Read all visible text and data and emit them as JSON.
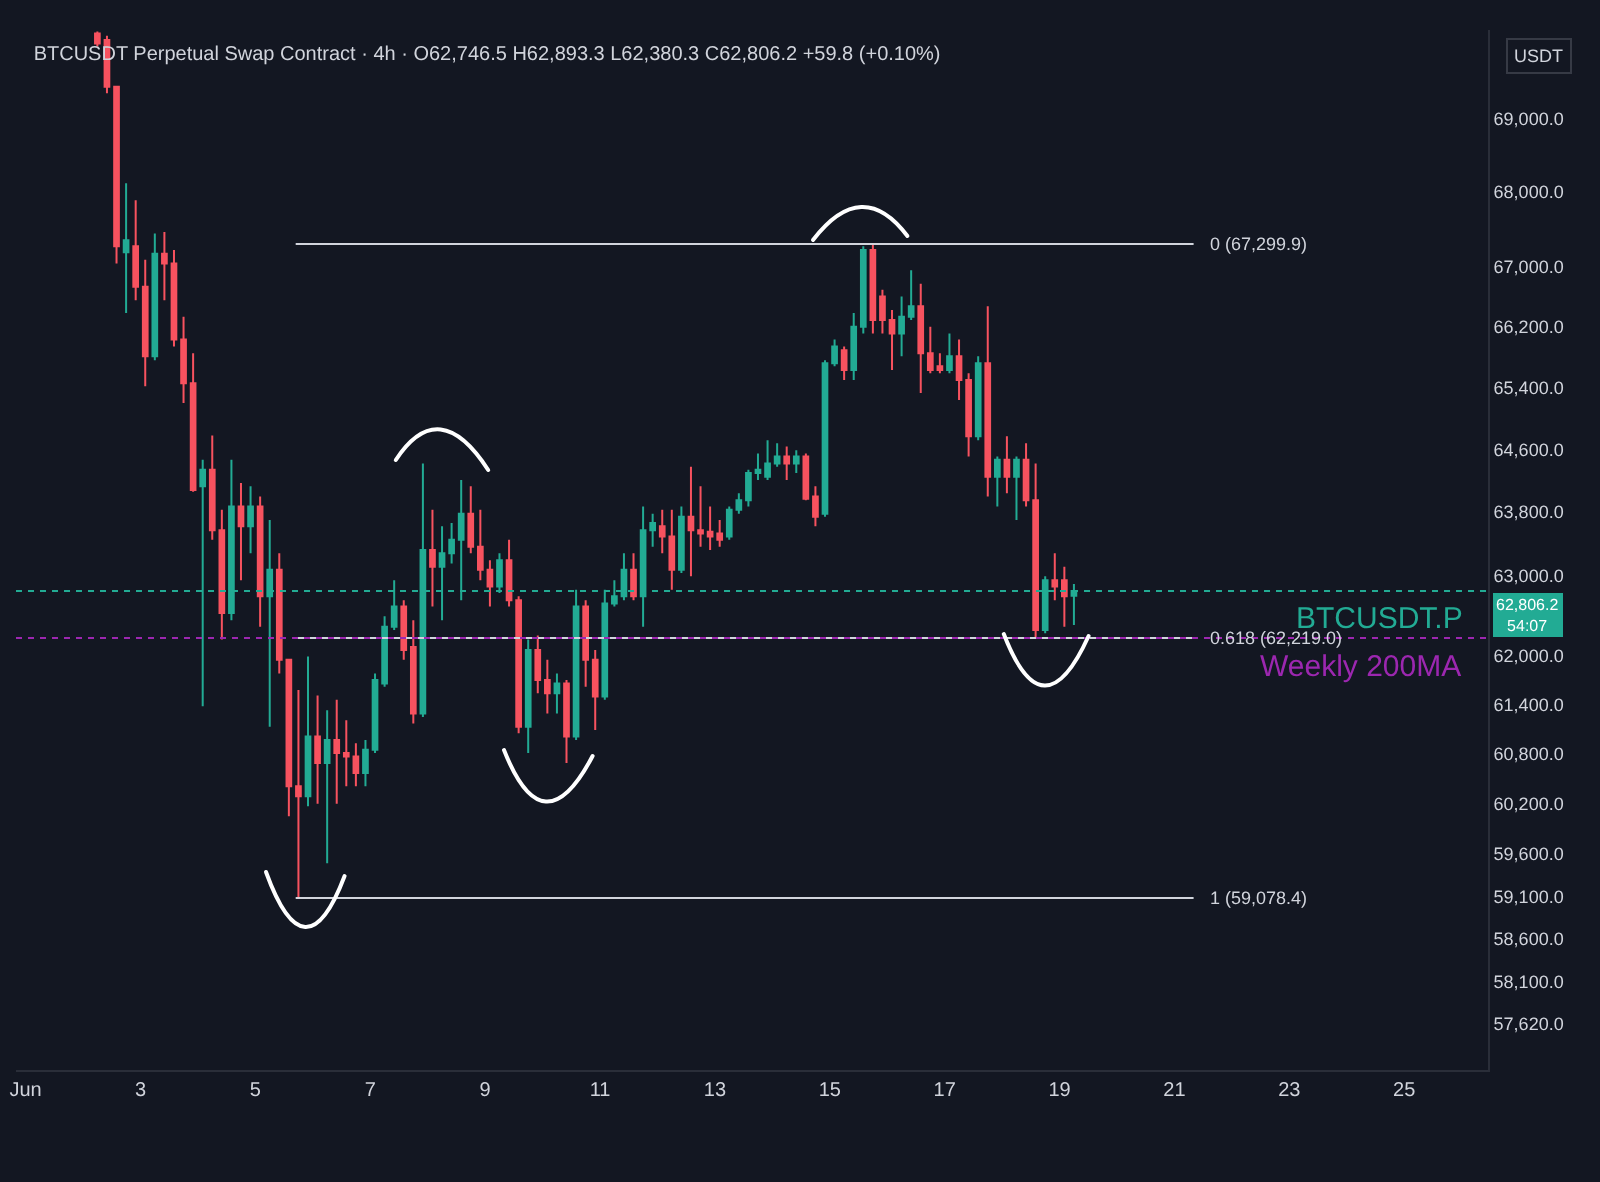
{
  "chart_data": {
    "type": "candlestick",
    "title": "BTCUSDT Perpetual Swap Contract · 4h · O62,746.5 H62,893.3 L62,380.3 C62,806.2 +59.8 (+0.10%)",
    "ylabel": "USDT",
    "log": true,
    "x": [
      "--06-02T06:00",
      "--06-02T10:00",
      "--06-02T14:00",
      "--06-02T18:00",
      "--06-02T22:00",
      "--06-03T02:00",
      "--06-03T06:00",
      "--06-03T10:00",
      "--06-03T14:00",
      "--06-03T18:00",
      "--06-03T22:00",
      "--06-04T02:00",
      "--06-04T06:00",
      "--06-04T10:00",
      "--06-04T14:00",
      "--06-04T18:00",
      "--06-04T22:00",
      "--06-05T02:00",
      "--06-05T06:00",
      "--06-05T10:00",
      "--06-05T14:00",
      "--06-05T18:00",
      "--06-05T22:00",
      "--06-06T02:00",
      "--06-06T06:00",
      "--06-06T10:00",
      "--06-06T14:00",
      "--06-06T18:00",
      "--06-06T22:00",
      "--06-07T02:00",
      "--06-07T06:00",
      "--06-07T10:00",
      "--06-07T14:00",
      "--06-07T18:00",
      "--06-07T22:00",
      "--06-08T02:00",
      "--06-08T06:00",
      "--06-08T10:00",
      "--06-08T14:00",
      "--06-08T18:00",
      "--06-08T22:00",
      "--06-09T02:00",
      "--06-09T06:00",
      "--06-09T10:00",
      "--06-09T14:00",
      "--06-09T18:00",
      "--06-09T22:00",
      "--06-10T02:00",
      "--06-10T06:00",
      "--06-10T10:00",
      "--06-10T14:00",
      "--06-10T18:00",
      "--06-10T22:00",
      "--06-11T02:00",
      "--06-11T06:00",
      "--06-11T10:00",
      "--06-11T14:00",
      "--06-11T18:00",
      "--06-11T22:00",
      "--06-12T02:00",
      "--06-12T06:00",
      "--06-12T10:00",
      "--06-12T14:00",
      "--06-12T18:00",
      "--06-12T22:00",
      "--06-13T02:00",
      "--06-13T06:00",
      "--06-13T10:00",
      "--06-13T14:00",
      "--06-13T18:00",
      "--06-13T22:00",
      "--06-14T02:00",
      "--06-14T06:00",
      "--06-14T10:00",
      "--06-14T14:00",
      "--06-14T18:00",
      "--06-14T22:00",
      "--06-15T02:00",
      "--06-15T06:00",
      "--06-15T10:00",
      "--06-15T14:00",
      "--06-15T18:00",
      "--06-15T22:00",
      "--06-16T02:00",
      "--06-16T06:00",
      "--06-16T10:00",
      "--06-16T14:00",
      "--06-16T18:00",
      "--06-16T22:00",
      "--06-17T02:00",
      "--06-17T06:00",
      "--06-17T10:00",
      "--06-17T14:00",
      "--06-17T18:00",
      "--06-17T22:00",
      "--06-18T02:00",
      "--06-18T06:00",
      "--06-18T10:00",
      "--06-18T14:00",
      "--06-18T18:00",
      "--06-18T22:00",
      "--06-19T02:00",
      "--06-19T06:00"
    ],
    "ohlc": [
      [
        70180,
        70210,
        70000,
        70040
      ],
      [
        70090,
        70150,
        69350,
        69440
      ],
      [
        69440,
        69450,
        67040,
        67270
      ],
      [
        67190,
        68120,
        66380,
        67350
      ],
      [
        67270,
        67890,
        66550,
        66730
      ],
      [
        66730,
        67090,
        65420,
        65810
      ],
      [
        65810,
        67440,
        65760,
        67170
      ],
      [
        67170,
        67460,
        66550,
        67040
      ],
      [
        67040,
        67220,
        65940,
        66030
      ],
      [
        66030,
        66330,
        65200,
        65460
      ],
      [
        65460,
        65850,
        64060,
        64080
      ],
      [
        64130,
        64470,
        61380,
        64340
      ],
      [
        64340,
        64780,
        63450,
        63570
      ],
      [
        63570,
        63830,
        62200,
        62530
      ],
      [
        62530,
        64470,
        62440,
        63870
      ],
      [
        63870,
        64170,
        62940,
        63620
      ],
      [
        63620,
        64130,
        63280,
        63870
      ],
      [
        63870,
        64000,
        62360,
        62740
      ],
      [
        62740,
        63700,
        61130,
        63070
      ],
      [
        63070,
        63280,
        61780,
        61950
      ],
      [
        61950,
        61950,
        60050,
        60410
      ],
      [
        60410,
        61580,
        59080,
        60290
      ],
      [
        60290,
        61990,
        60170,
        61010
      ],
      [
        61010,
        61510,
        60200,
        60690
      ],
      [
        60690,
        61330,
        59490,
        60970
      ],
      [
        60970,
        61460,
        60200,
        60810
      ],
      [
        60810,
        61210,
        60410,
        60770
      ],
      [
        60770,
        60930,
        60410,
        60570
      ],
      [
        60570,
        60970,
        60410,
        60850
      ],
      [
        60850,
        61780,
        60810,
        61700
      ],
      [
        61660,
        62490,
        61620,
        62360
      ],
      [
        62360,
        62940,
        62320,
        62610
      ],
      [
        62610,
        62690,
        61950,
        62070
      ],
      [
        62110,
        62440,
        61170,
        61290
      ],
      [
        61290,
        64420,
        61250,
        63320
      ],
      [
        63320,
        63830,
        62610,
        63110
      ],
      [
        63110,
        63620,
        62440,
        63280
      ],
      [
        63280,
        63660,
        63150,
        63450
      ],
      [
        63450,
        64210,
        62690,
        63780
      ],
      [
        63780,
        64130,
        63280,
        63360
      ],
      [
        63360,
        63830,
        62940,
        63070
      ],
      [
        63070,
        63190,
        62610,
        62860
      ],
      [
        62860,
        63280,
        62780,
        63190
      ],
      [
        63190,
        63450,
        62610,
        62690
      ],
      [
        62690,
        62740,
        61050,
        61130
      ],
      [
        61130,
        62200,
        60810,
        62070
      ],
      [
        62070,
        62250,
        61540,
        61700
      ],
      [
        61700,
        61950,
        61290,
        61540
      ],
      [
        61540,
        61780,
        61290,
        61660
      ],
      [
        61660,
        61700,
        60690,
        61010
      ],
      [
        61010,
        62820,
        60970,
        62610
      ],
      [
        62610,
        62690,
        61620,
        61950
      ],
      [
        61950,
        62070,
        61090,
        61500
      ],
      [
        61500,
        62820,
        61460,
        62650
      ],
      [
        62650,
        62940,
        62610,
        62740
      ],
      [
        62740,
        63280,
        62690,
        63070
      ],
      [
        63070,
        63280,
        62690,
        62740
      ],
      [
        62740,
        63870,
        62360,
        63570
      ],
      [
        63570,
        63780,
        63360,
        63660
      ],
      [
        63620,
        63830,
        63280,
        63490
      ],
      [
        63490,
        63830,
        62820,
        63070
      ],
      [
        63070,
        63870,
        63030,
        63740
      ],
      [
        63740,
        64380,
        62990,
        63570
      ],
      [
        63570,
        64130,
        63360,
        63530
      ],
      [
        63550,
        63870,
        63320,
        63490
      ],
      [
        63530,
        63700,
        63360,
        63450
      ],
      [
        63490,
        63870,
        63450,
        63830
      ],
      [
        63830,
        64040,
        63780,
        63950
      ],
      [
        63950,
        64340,
        63870,
        64300
      ],
      [
        64300,
        64550,
        64210,
        64340
      ],
      [
        64250,
        64720,
        64210,
        64420
      ],
      [
        64420,
        64680,
        64380,
        64510
      ],
      [
        64510,
        64640,
        64210,
        64420
      ],
      [
        64420,
        64590,
        64300,
        64510
      ],
      [
        64510,
        64550,
        63950,
        63970
      ],
      [
        64000,
        64130,
        63620,
        63740
      ],
      [
        63780,
        65760,
        63740,
        65720
      ],
      [
        65720,
        66030,
        65680,
        65940
      ],
      [
        65890,
        65940,
        65500,
        65630
      ],
      [
        65630,
        66380,
        65500,
        66200
      ],
      [
        66200,
        67270,
        66110,
        67220
      ],
      [
        67220,
        67300,
        66110,
        66290
      ],
      [
        66600,
        66690,
        66110,
        66290
      ],
      [
        66290,
        66420,
        65630,
        66110
      ],
      [
        66110,
        66600,
        65810,
        66330
      ],
      [
        66330,
        66950,
        66290,
        66470
      ],
      [
        66470,
        66770,
        65330,
        65850
      ],
      [
        65850,
        66200,
        65590,
        65630
      ],
      [
        65680,
        65850,
        65590,
        65630
      ],
      [
        65630,
        66110,
        65590,
        65810
      ],
      [
        65810,
        66030,
        65240,
        65500
      ],
      [
        65500,
        65590,
        64510,
        64770
      ],
      [
        64770,
        65810,
        64720,
        65720
      ],
      [
        65720,
        66470,
        64000,
        64250
      ],
      [
        64250,
        64510,
        63870,
        64470
      ],
      [
        64470,
        64770,
        64040,
        64250
      ],
      [
        64250,
        64510,
        63700,
        64470
      ],
      [
        64470,
        64680,
        63870,
        63950
      ],
      [
        63950,
        64420,
        62220,
        62320
      ],
      [
        62320,
        62990,
        62280,
        62940
      ],
      [
        62940,
        63280,
        62690,
        62860
      ],
      [
        62940,
        63110,
        62360,
        62740
      ],
      [
        62746.5,
        62893.3,
        62380.3,
        62806.2
      ]
    ],
    "colors": [
      "#f7525f",
      "#f7525f",
      "#f7525f",
      "#22ab94",
      "#f7525f",
      "#f7525f",
      "#22ab94",
      "#f7525f",
      "#f7525f",
      "#f7525f",
      "#f7525f",
      "#22ab94",
      "#f7525f",
      "#f7525f",
      "#22ab94",
      "#f7525f",
      "#22ab94",
      "#f7525f",
      "#22ab94",
      "#f7525f",
      "#f7525f",
      "#f7525f",
      "#22ab94",
      "#f7525f",
      "#22ab94",
      "#f7525f",
      "#f7525f",
      "#f7525f",
      "#22ab94",
      "#22ab94",
      "#22ab94",
      "#22ab94",
      "#f7525f",
      "#f7525f",
      "#22ab94",
      "#f7525f",
      "#22ab94",
      "#22ab94",
      "#22ab94",
      "#f7525f",
      "#f7525f",
      "#f7525f",
      "#22ab94",
      "#f7525f",
      "#f7525f",
      "#22ab94",
      "#f7525f",
      "#f7525f",
      "#22ab94",
      "#f7525f",
      "#22ab94",
      "#f7525f",
      "#f7525f",
      "#22ab94",
      "#22ab94",
      "#22ab94",
      "#f7525f",
      "#22ab94",
      "#22ab94",
      "#f7525f",
      "#f7525f",
      "#22ab94",
      "#f7525f",
      "#f7525f",
      "#f7525f",
      "#f7525f",
      "#22ab94",
      "#22ab94",
      "#22ab94",
      "#22ab94",
      "#22ab94",
      "#22ab94",
      "#f7525f",
      "#22ab94",
      "#f7525f",
      "#f7525f",
      "#22ab94",
      "#22ab94",
      "#f7525f",
      "#22ab94",
      "#22ab94",
      "#f7525f",
      "#f7525f",
      "#f7525f",
      "#22ab94",
      "#22ab94",
      "#f7525f",
      "#f7525f",
      "#f7525f",
      "#22ab94",
      "#f7525f",
      "#f7525f",
      "#22ab94",
      "#f7525f",
      "#22ab94",
      "#f7525f",
      "#22ab94",
      "#f7525f",
      "#f7525f",
      "#22ab94",
      "#f7525f",
      "#f7525f",
      "#22ab94"
    ],
    "xlim": [
      "--05-31T20:00",
      "--06-26T11:00"
    ],
    "xticks": [
      {
        "value": "--06-01",
        "label": "Jun"
      },
      {
        "value": "--06-03",
        "label": "3"
      },
      {
        "value": "--06-05",
        "label": "5"
      },
      {
        "value": "--06-07",
        "label": "7"
      },
      {
        "value": "--06-09",
        "label": "9"
      },
      {
        "value": "--06-11",
        "label": "11"
      },
      {
        "value": "--06-13",
        "label": "13"
      },
      {
        "value": "--06-15",
        "label": "15"
      },
      {
        "value": "--06-17",
        "label": "17"
      },
      {
        "value": "--06-19",
        "label": "19"
      },
      {
        "value": "--06-21",
        "label": "21"
      },
      {
        "value": "--06-23",
        "label": "23"
      },
      {
        "value": "--06-25",
        "label": "25"
      }
    ],
    "ylim": [
      57090,
      70230
    ],
    "yticks": [
      {
        "value": 57620,
        "label": "57,620.0"
      },
      {
        "value": 58100,
        "label": "58,100.0"
      },
      {
        "value": 58600,
        "label": "58,600.0"
      },
      {
        "value": 59100,
        "label": "59,100.0"
      },
      {
        "value": 59600,
        "label": "59,600.0"
      },
      {
        "value": 60200,
        "label": "60,200.0"
      },
      {
        "value": 60800,
        "label": "60,800.0"
      },
      {
        "value": 61400,
        "label": "61,400.0"
      },
      {
        "value": 62000,
        "label": "62,000.0"
      },
      {
        "value": 63000,
        "label": "63,000.0"
      },
      {
        "value": 63800,
        "label": "63,800.0"
      },
      {
        "value": 64600,
        "label": "64,600.0"
      },
      {
        "value": 65400,
        "label": "65,400.0"
      },
      {
        "value": 66200,
        "label": "66,200.0"
      },
      {
        "value": 67000,
        "label": "67,000.0"
      },
      {
        "value": 68000,
        "label": "68,000.0"
      },
      {
        "value": 69000,
        "label": "69,000.0"
      }
    ],
    "ref_lines": [
      {
        "axis": "y",
        "value": 67299.9,
        "label": "0 (67,299.9)",
        "color": "#d1d4dc",
        "line_style": "solid"
      },
      {
        "axis": "y",
        "value": 62219.0,
        "label": "0.618 (62,219.0)",
        "color": "#d1d4dc",
        "line_style": "solid"
      },
      {
        "axis": "y",
        "value": 59078.4,
        "label": "1 (59,078.4)",
        "color": "#d1d4dc",
        "line_style": "solid"
      },
      {
        "axis": "y",
        "value": 62219.0,
        "label": "Weekly 200MA",
        "color": "#9c27b0",
        "line_style": "dotted"
      },
      {
        "axis": "y",
        "value": 62806.2,
        "label": "BTCUSDT.P",
        "color": "#22ab94",
        "line_style": "dotted"
      }
    ],
    "annotations": [
      "62,806.2\n54:07"
    ]
  }
}
